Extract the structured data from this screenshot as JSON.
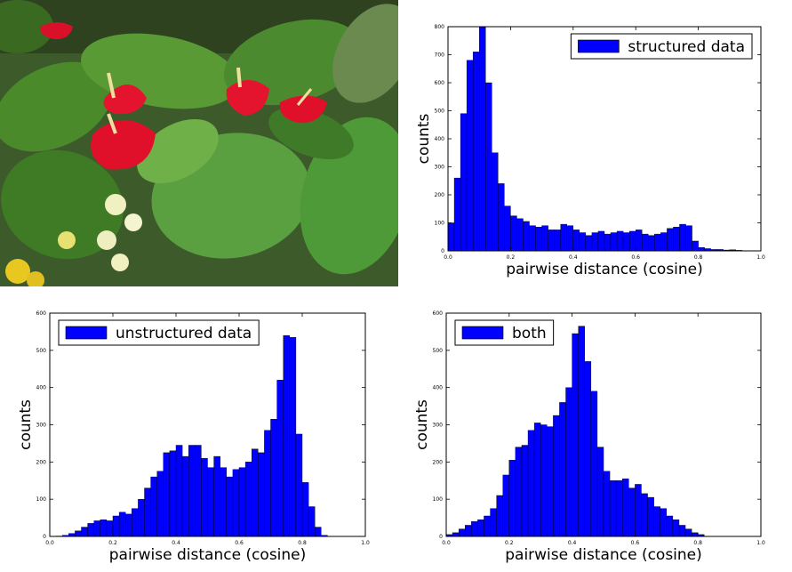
{
  "photo": {
    "icon": "anthurium-flowers-photo"
  },
  "chart_data": [
    {
      "type": "bar",
      "id": "structured",
      "legend": "structured data",
      "legend_placement": "top-right",
      "bar_color": "#0000ff",
      "xlabel": "pairwise distance (cosine)",
      "ylabel": "counts",
      "xlim": [
        0,
        1
      ],
      "ylim": [
        0,
        800
      ],
      "xticks": [
        "0.0",
        "0.2",
        "0.4",
        "0.6",
        "0.8",
        "1.0"
      ],
      "yticks": [
        "0",
        "100",
        "200",
        "300",
        "400",
        "500",
        "600",
        "700",
        "800"
      ],
      "bin_width": 0.02,
      "bin_start": 0.0,
      "values": [
        100,
        260,
        490,
        680,
        710,
        800,
        600,
        350,
        240,
        160,
        125,
        115,
        105,
        90,
        85,
        90,
        75,
        75,
        95,
        90,
        75,
        65,
        55,
        65,
        70,
        60,
        65,
        70,
        65,
        70,
        75,
        60,
        55,
        60,
        65,
        80,
        85,
        95,
        90,
        35,
        12,
        8,
        5,
        5,
        3,
        4,
        2,
        1,
        0,
        0
      ]
    },
    {
      "type": "bar",
      "id": "unstructured",
      "legend": "unstructured data",
      "legend_placement": "top-left",
      "bar_color": "#0000ff",
      "xlabel": "pairwise distance (cosine)",
      "ylabel": "counts",
      "xlim": [
        0,
        1
      ],
      "ylim": [
        0,
        600
      ],
      "xticks": [
        "0.0",
        "0.2",
        "0.4",
        "0.6",
        "0.8",
        "1.0"
      ],
      "yticks": [
        "0",
        "100",
        "200",
        "300",
        "400",
        "500",
        "600"
      ],
      "bin_width": 0.02,
      "bin_start": 0.0,
      "values": [
        0,
        1,
        3,
        8,
        15,
        25,
        35,
        42,
        45,
        42,
        55,
        65,
        60,
        75,
        100,
        130,
        160,
        175,
        225,
        230,
        245,
        215,
        245,
        245,
        210,
        185,
        215,
        185,
        160,
        180,
        185,
        200,
        235,
        225,
        285,
        315,
        420,
        540,
        535,
        275,
        145,
        80,
        25,
        3,
        0,
        0,
        0,
        0,
        0,
        0
      ]
    },
    {
      "type": "bar",
      "id": "both",
      "legend": "both",
      "legend_placement": "top-left",
      "bar_color": "#0000ff",
      "xlabel": "pairwise distance (cosine)",
      "ylabel": "counts",
      "xlim": [
        0,
        1
      ],
      "ylim": [
        0,
        600
      ],
      "xticks": [
        "0.0",
        "0.2",
        "0.4",
        "0.6",
        "0.8",
        "1.0"
      ],
      "yticks": [
        "0",
        "100",
        "200",
        "300",
        "400",
        "500",
        "600"
      ],
      "bin_width": 0.02,
      "bin_start": 0.0,
      "values": [
        5,
        10,
        20,
        30,
        40,
        45,
        55,
        75,
        110,
        165,
        205,
        240,
        245,
        285,
        305,
        300,
        295,
        325,
        360,
        400,
        545,
        565,
        470,
        390,
        240,
        175,
        150,
        150,
        155,
        130,
        140,
        115,
        105,
        80,
        75,
        55,
        45,
        30,
        20,
        10,
        5,
        0,
        0,
        0,
        0,
        0,
        0,
        0,
        0,
        0
      ]
    }
  ]
}
